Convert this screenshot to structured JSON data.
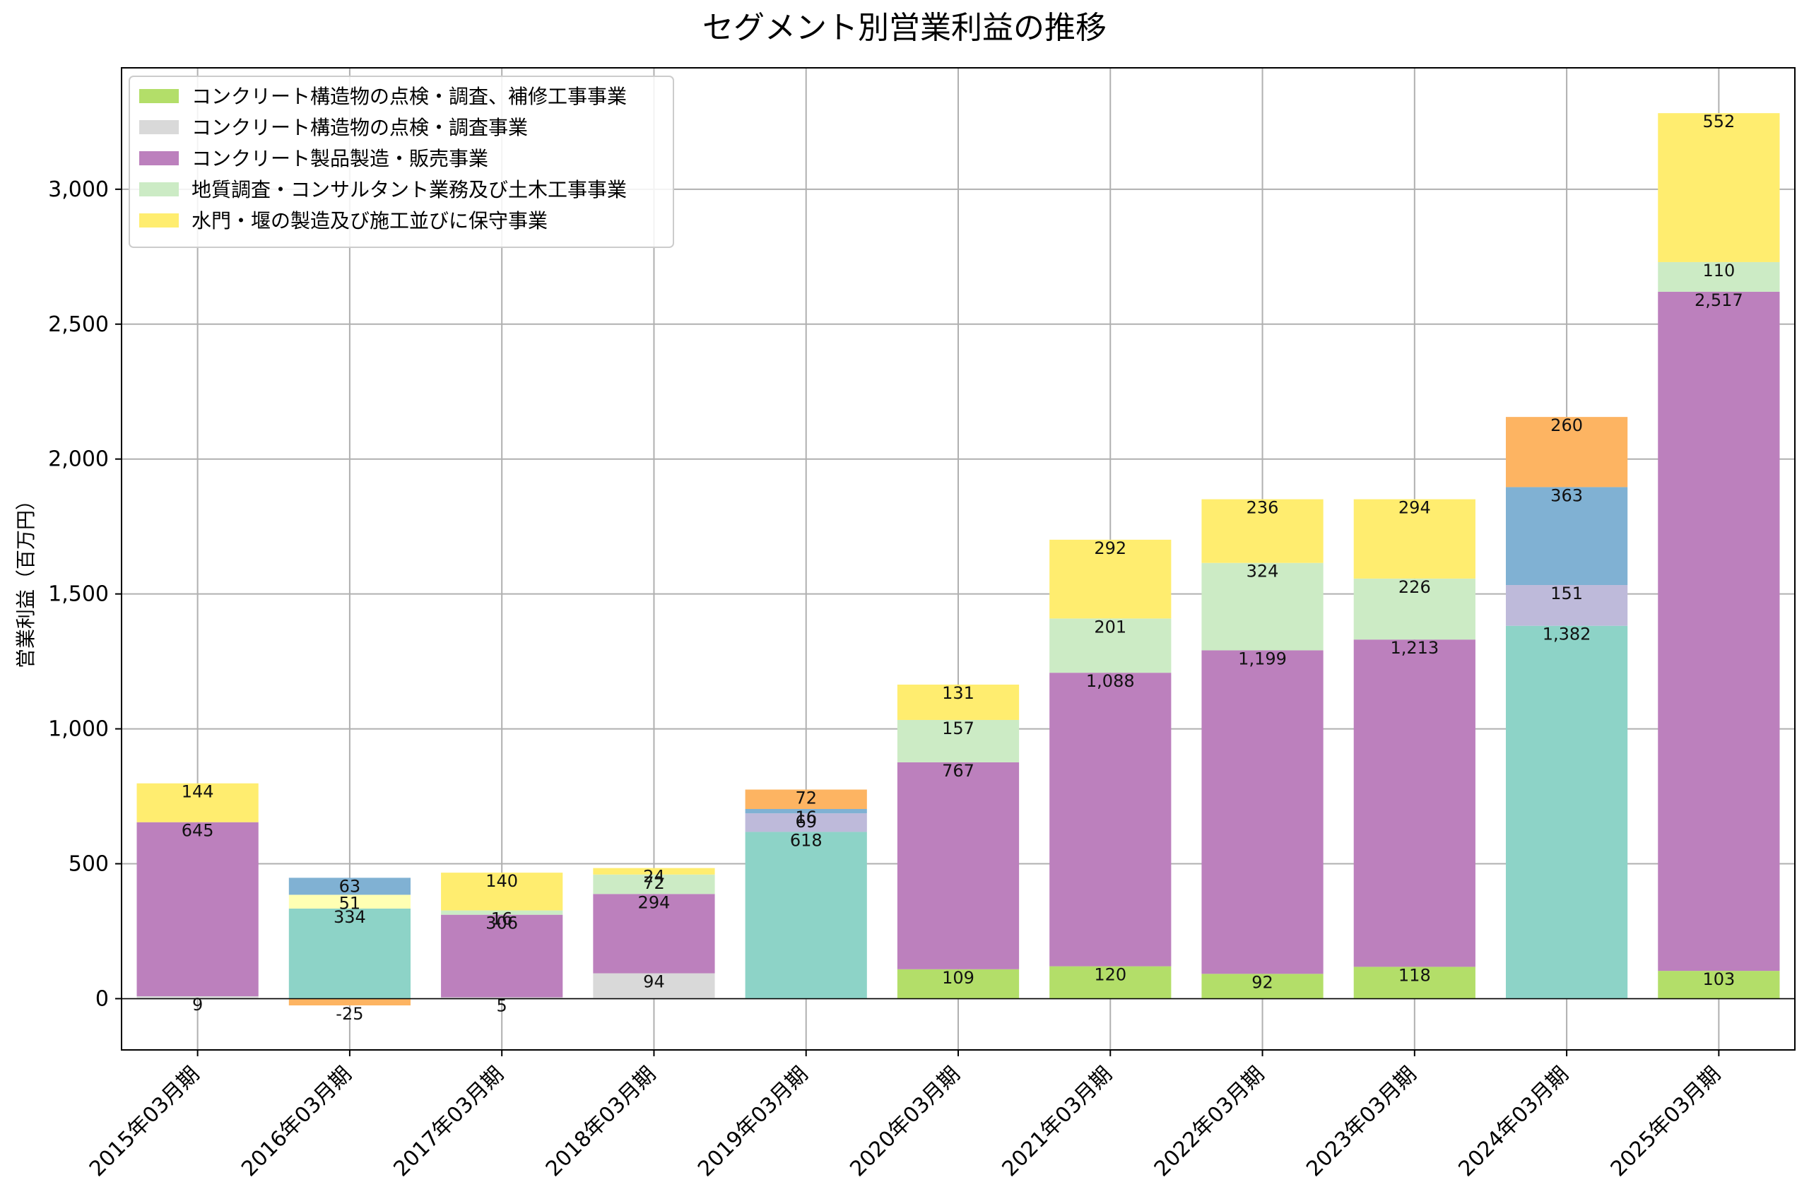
{
  "chart_data": {
    "type": "bar",
    "stacked": true,
    "title": "セグメント別営業利益の推移",
    "ylabel": "営業利益（百万円）",
    "xlabel": "",
    "ylim": [
      -190,
      3450
    ],
    "yticks": [
      0,
      500,
      1000,
      1500,
      2000,
      2500,
      3000
    ],
    "ytick_labels": [
      "0",
      "500",
      "1,000",
      "1,500",
      "2,000",
      "2,500",
      "3,000"
    ],
    "grid": true,
    "legend_position": "top-left",
    "categories": [
      "2015年03月期",
      "2016年03月期",
      "2017年03月期",
      "2018年03月期",
      "2019年03月期",
      "2020年03月期",
      "2021年03月期",
      "2022年03月期",
      "2023年03月期",
      "2024年03月期",
      "2025年03月期"
    ],
    "series": [
      {
        "name": "コンクリート構造物の点検・調査、補修工事事業",
        "color": "#b3de69",
        "legend": true,
        "values": [
          null,
          null,
          null,
          null,
          null,
          109,
          120,
          92,
          118,
          null,
          103
        ]
      },
      {
        "name": "コンクリート構造物の点検・調査事業",
        "color": "#d9d9d9",
        "legend": true,
        "values": [
          9,
          null,
          5,
          94,
          null,
          null,
          null,
          null,
          null,
          null,
          null
        ]
      },
      {
        "name": "",
        "color": "#fdb462",
        "legend": false,
        "values": [
          null,
          -25,
          null,
          null,
          null,
          null,
          null,
          null,
          null,
          null,
          null
        ]
      },
      {
        "name": "",
        "color": "#8dd3c7",
        "legend": false,
        "values": [
          null,
          334,
          null,
          null,
          618,
          null,
          null,
          null,
          null,
          1382,
          null
        ]
      },
      {
        "name": "コンクリート製品製造・販売事業",
        "color": "#bc80bd",
        "legend": true,
        "values": [
          645,
          null,
          306,
          294,
          null,
          767,
          1088,
          1199,
          1213,
          null,
          2517
        ]
      },
      {
        "name": "",
        "color": "#bebada",
        "legend": false,
        "values": [
          null,
          null,
          null,
          null,
          69,
          null,
          null,
          null,
          null,
          151,
          null
        ]
      },
      {
        "name": "",
        "color": "#ffffb3",
        "legend": false,
        "values": [
          null,
          51,
          null,
          null,
          null,
          null,
          null,
          null,
          null,
          null,
          null
        ]
      },
      {
        "name": "地質調査・コンサルタント業務及び土木工事事業",
        "color": "#ccebc5",
        "legend": true,
        "values": [
          null,
          null,
          16,
          72,
          null,
          157,
          201,
          324,
          226,
          null,
          110
        ]
      },
      {
        "name": "",
        "color": "#80b1d3",
        "legend": false,
        "values": [
          null,
          63,
          null,
          null,
          16,
          null,
          null,
          null,
          null,
          363,
          null
        ]
      },
      {
        "name": "",
        "color": "#fdb462",
        "legend": false,
        "values": [
          null,
          null,
          null,
          null,
          72,
          null,
          null,
          null,
          null,
          260,
          null
        ]
      },
      {
        "name": "水門・堰の製造及び施工並びに保守事業",
        "color": "#ffed6f",
        "legend": true,
        "values": [
          144,
          null,
          140,
          24,
          null,
          131,
          292,
          236,
          294,
          null,
          552
        ]
      }
    ]
  }
}
